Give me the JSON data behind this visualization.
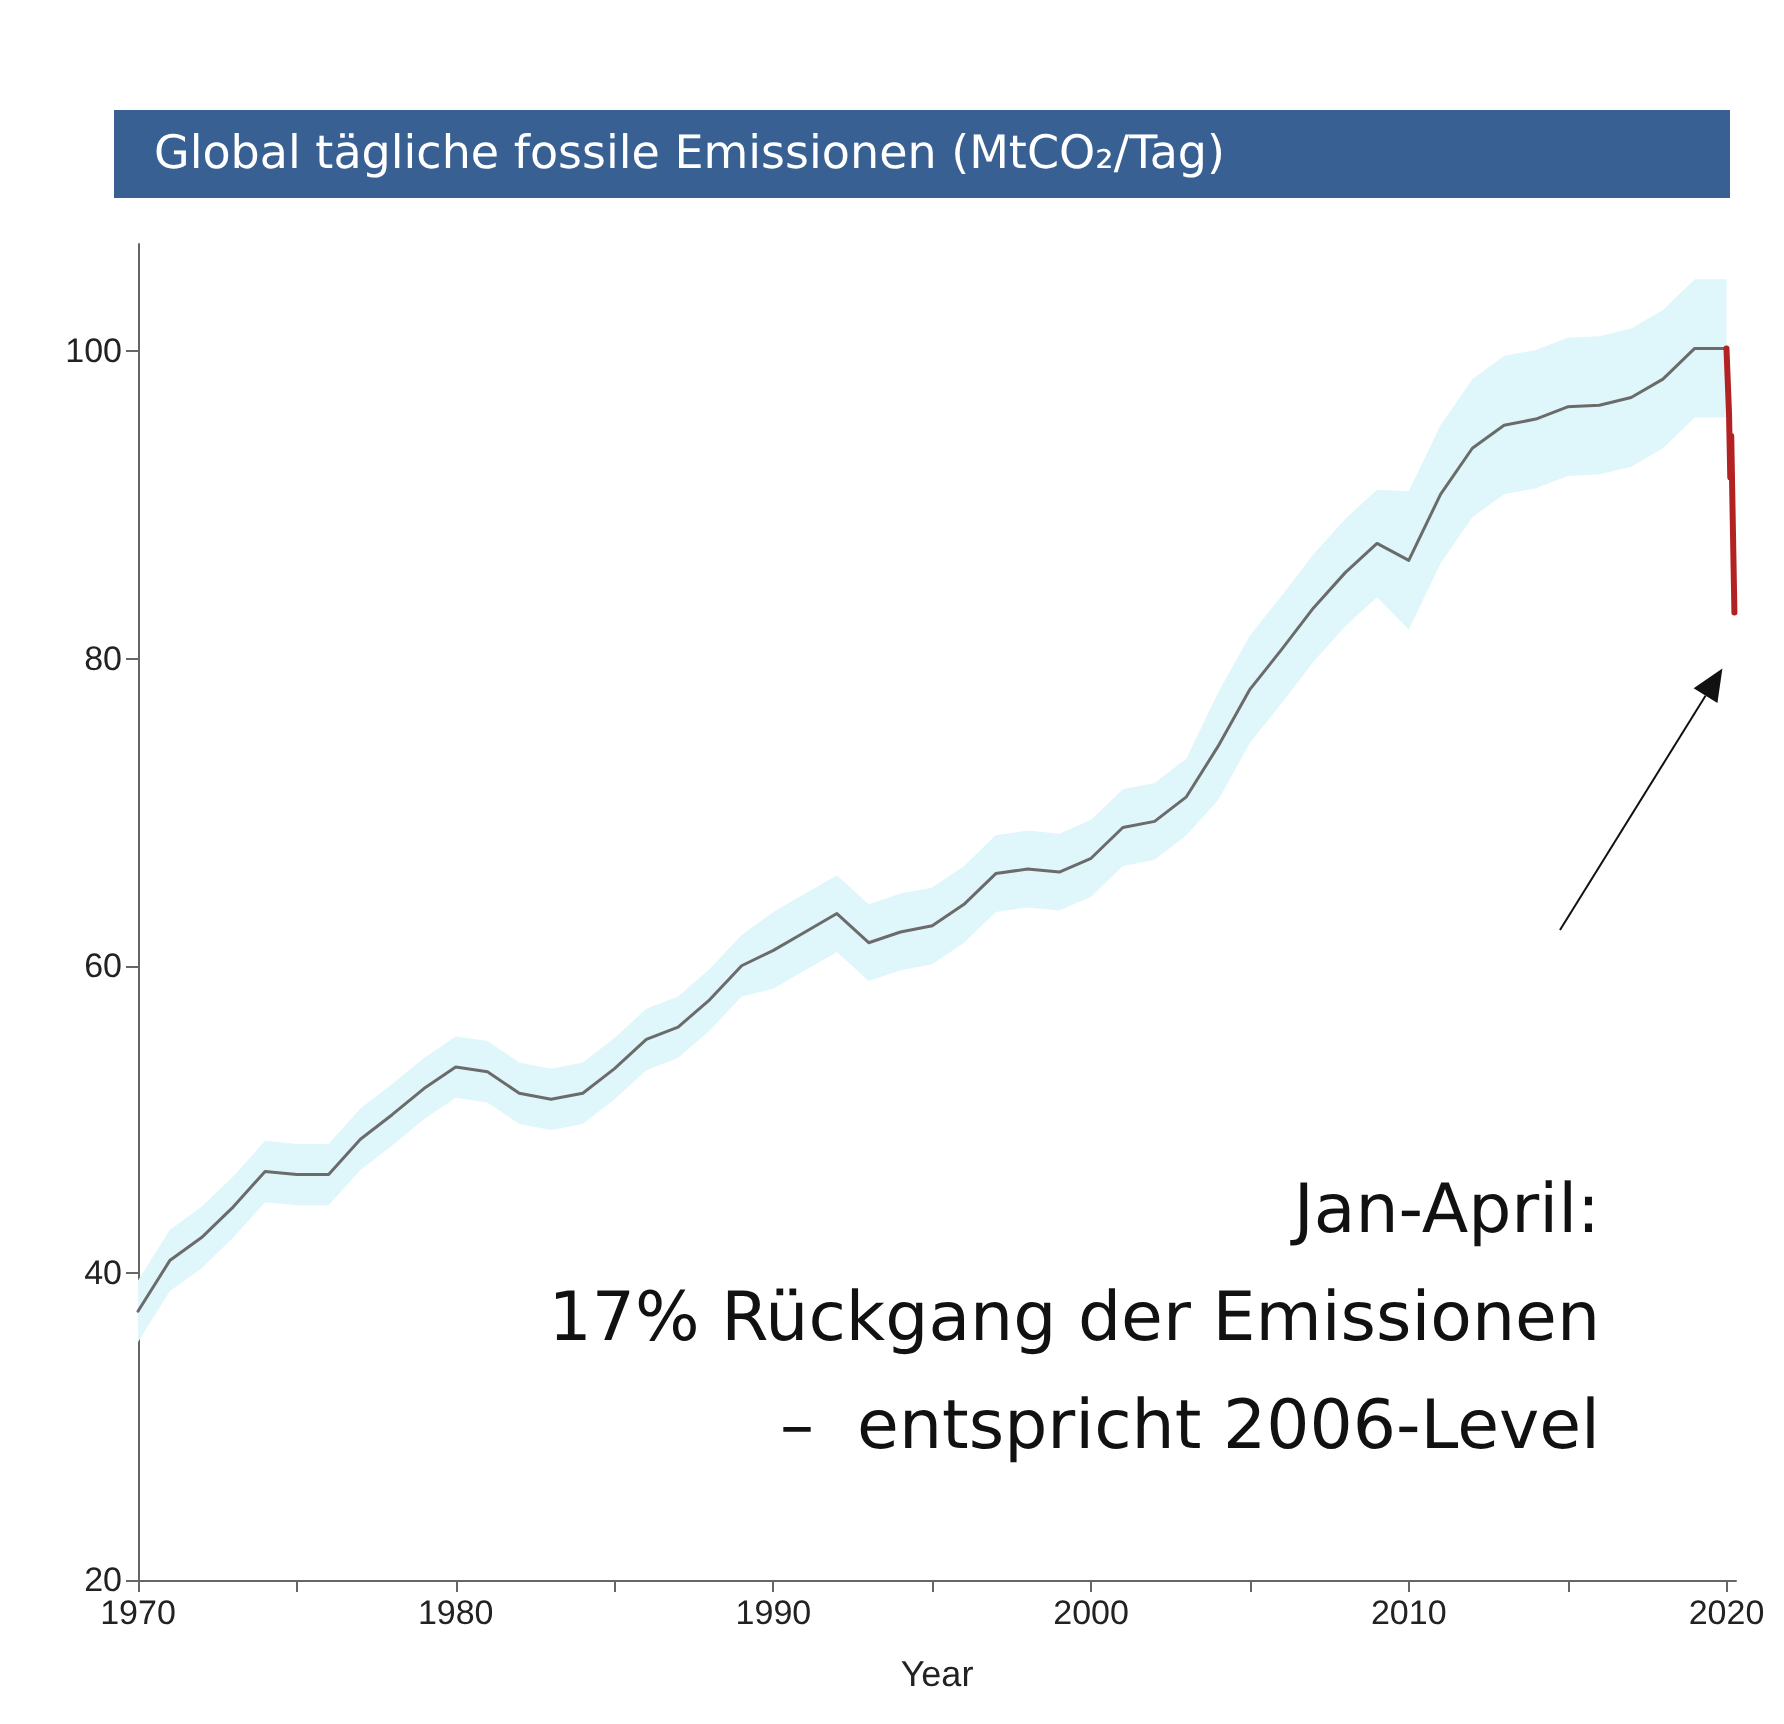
{
  "chart_data": {
    "type": "line",
    "title": "Global tägliche fossile Emissionen (MtCO₂/Tag)",
    "xlabel": "Year",
    "xlim": [
      1970,
      2020.3
    ],
    "ylim": [
      20,
      107
    ],
    "xticks": [
      1970,
      {
        "value": 1975,
        "label": null
      },
      1980,
      {
        "value": 1985,
        "label": null
      },
      1990,
      {
        "value": 1995,
        "label": null
      },
      2000,
      {
        "value": 2005,
        "label": null
      },
      2010,
      {
        "value": 2015,
        "label": null
      },
      2020
    ],
    "yticks": [
      20,
      40,
      60,
      80,
      100
    ],
    "grid": false,
    "marker": "none",
    "line_style": "solid",
    "annotations": [
      "Jan-April:\n17% Rückgang der Emissionen\n–  entspricht 2006-Level"
    ],
    "series": [
      {
        "color": "#6b6b6b",
        "x": [
          1970,
          1971,
          1972,
          1973,
          1974,
          1975,
          1976,
          1977,
          1978,
          1979,
          1980,
          1981,
          1982,
          1983,
          1984,
          1985,
          1986,
          1987,
          1988,
          1989,
          1990,
          1991,
          1992,
          1993,
          1994,
          1995,
          1996,
          1997,
          1998,
          1999,
          2000,
          2001,
          2002,
          2003,
          2004,
          2005,
          2006,
          2007,
          2008,
          2009,
          2010,
          2011,
          2012,
          2013,
          2014,
          2015,
          2016,
          2017,
          2018,
          2019,
          2020
        ],
        "values": [
          37.5,
          40.8,
          42.3,
          44.3,
          46.6,
          46.4,
          46.4,
          48.7,
          50.3,
          52.0,
          53.4,
          53.1,
          51.7,
          51.3,
          51.7,
          53.3,
          55.2,
          56.0,
          57.8,
          60.0,
          61.0,
          62.2,
          63.4,
          61.5,
          62.2,
          62.6,
          64.0,
          66.0,
          66.3,
          66.1,
          67.0,
          69.0,
          69.4,
          71.0,
          74.3,
          78.0,
          80.6,
          83.3,
          85.6,
          87.5,
          86.4,
          90.7,
          93.7,
          95.2,
          95.6,
          96.4,
          96.5,
          97.0,
          98.2,
          100.2,
          100.2
        ],
        "lower": [
          35.5,
          38.8,
          40.3,
          42.3,
          44.6,
          44.4,
          44.4,
          46.7,
          48.3,
          50.0,
          51.4,
          51.1,
          49.7,
          49.3,
          49.7,
          51.3,
          53.2,
          54.0,
          55.8,
          58.0,
          58.5,
          59.7,
          60.9,
          59.0,
          59.7,
          60.1,
          61.5,
          63.5,
          63.8,
          63.6,
          64.5,
          66.5,
          66.9,
          68.5,
          70.8,
          74.5,
          77.1,
          79.8,
          82.1,
          84.0,
          81.9,
          86.2,
          89.2,
          90.7,
          91.1,
          91.9,
          92.0,
          92.5,
          93.7,
          95.7,
          95.7
        ],
        "upper": [
          39.5,
          42.8,
          44.3,
          46.3,
          48.6,
          48.4,
          48.4,
          50.7,
          52.3,
          54.0,
          55.4,
          55.1,
          53.7,
          53.3,
          53.7,
          55.3,
          57.2,
          58.0,
          59.8,
          62.0,
          63.5,
          64.7,
          65.9,
          64.0,
          64.7,
          65.1,
          66.5,
          68.5,
          68.8,
          68.6,
          69.5,
          71.5,
          71.9,
          73.5,
          77.8,
          81.5,
          84.1,
          86.8,
          89.1,
          91.0,
          90.9,
          95.2,
          98.2,
          99.7,
          100.1,
          100.9,
          101.0,
          101.5,
          102.7,
          104.7,
          104.7
        ]
      },
      {
        "color": "#b22222",
        "x": [
          2020,
          2020.08,
          2020.12,
          2020.15,
          2020.25
        ],
        "values": [
          100.2,
          96,
          91.8,
          94.5,
          83
        ]
      }
    ]
  }
}
